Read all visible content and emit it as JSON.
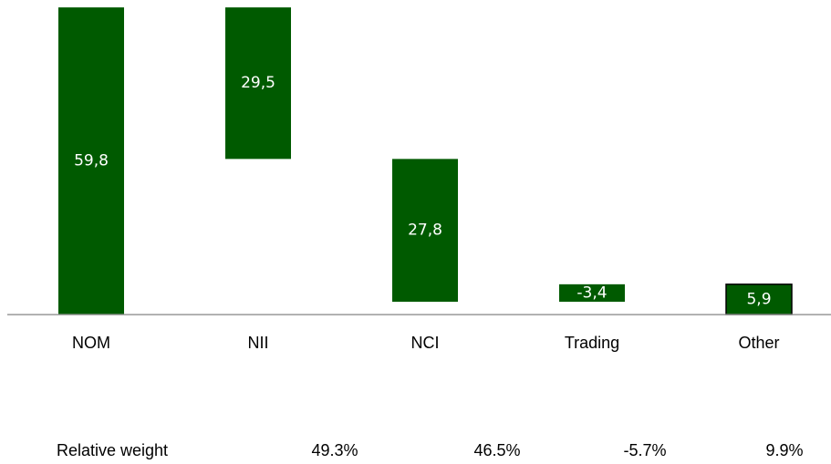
{
  "chart_data": {
    "type": "waterfall",
    "categories": [
      "NOM",
      "NII",
      "NCI",
      "Trading",
      "Other"
    ],
    "values": [
      59.8,
      29.5,
      27.8,
      -3.4,
      5.9
    ],
    "value_labels": [
      "59,8",
      "29,5",
      "27,8",
      "-3,4",
      "5,9"
    ],
    "first_is_total": true,
    "color": "#005a00",
    "ylim": [
      -3,
      60
    ],
    "relative_weight": {
      "label": "Relative weight",
      "values": [
        49.3,
        46.5,
        -5.7,
        9.9
      ],
      "value_labels": [
        "49.3%",
        "46.5%",
        "-5.7%",
        "9.9%"
      ]
    }
  }
}
